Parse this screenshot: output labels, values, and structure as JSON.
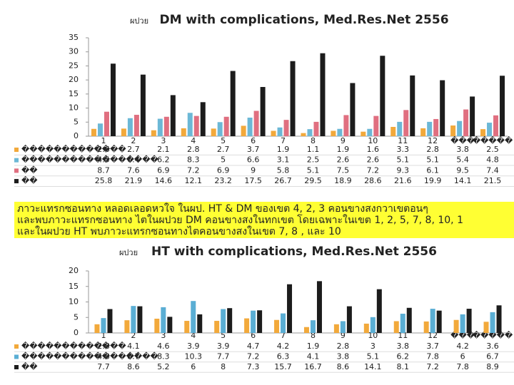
{
  "charts": [
    {
      "type": "bar",
      "prefix": "ผปวย",
      "title": "DM with complications, Med.Res.Net 2556",
      "categories": [
        "1",
        "2",
        "3",
        "4",
        "5",
        "6",
        "7",
        "8",
        "9",
        "10",
        "11",
        "12",
        "���",
        "�����"
      ],
      "ylim": [
        0,
        35
      ],
      "yticks": [
        0,
        5,
        10,
        15,
        20,
        25,
        30,
        35
      ],
      "series": [
        {
          "name": "�������������",
          "color": "#f2a93b",
          "values": [
            2.6,
            2.7,
            2.1,
            2.8,
            2.7,
            3.7,
            1.9,
            1.1,
            1.9,
            1.6,
            3.3,
            2.8,
            3.8,
            2.5
          ]
        },
        {
          "name": "�����������������",
          "color": "#6cb8d6",
          "values": [
            4.5,
            6.4,
            6.2,
            8.3,
            5.0,
            6.6,
            3.1,
            2.5,
            2.6,
            2.6,
            5.1,
            5.1,
            5.4,
            4.8
          ]
        },
        {
          "name": "��",
          "color": "#e06f80",
          "values": [
            8.7,
            7.6,
            6.9,
            7.2,
            6.9,
            9.0,
            5.8,
            5.1,
            7.5,
            7.2,
            9.3,
            6.1,
            9.5,
            7.4
          ]
        },
        {
          "name": "��",
          "color": "#1c1c1c",
          "values": [
            25.8,
            21.9,
            14.6,
            12.1,
            23.2,
            17.5,
            26.7,
            29.5,
            18.9,
            28.6,
            21.6,
            19.9,
            14.1,
            21.5
          ]
        }
      ]
    },
    {
      "type": "bar",
      "prefix": "ผปวย",
      "title": "HT with complications, Med.Res.Net 2556",
      "categories": [
        "1",
        "2",
        "3",
        "4",
        "5",
        "6",
        "7",
        "8",
        "9",
        "10",
        "11",
        "12",
        "���",
        "�����"
      ],
      "ylim": [
        0,
        20
      ],
      "yticks": [
        0,
        5,
        10,
        15,
        20
      ],
      "series": [
        {
          "name": "�������������",
          "color": "#f2a93b",
          "values": [
            2.8,
            4.1,
            4.6,
            3.9,
            3.9,
            4.7,
            4.2,
            1.9,
            2.8,
            3.0,
            3.8,
            3.7,
            4.2,
            3.6
          ]
        },
        {
          "name": "�����������������",
          "color": "#5aaed4",
          "values": [
            4.8,
            8.7,
            8.3,
            10.3,
            7.7,
            7.2,
            6.3,
            4.1,
            3.8,
            5.1,
            6.2,
            7.8,
            6.0,
            6.7
          ]
        },
        {
          "name": "��",
          "color": "#1c1c1c",
          "values": [
            7.7,
            8.6,
            5.2,
            6.0,
            8.0,
            7.3,
            15.7,
            16.7,
            8.6,
            14.1,
            8.1,
            7.2,
            7.8,
            8.9
          ]
        }
      ]
    }
  ],
  "annotation_lines": [
    "ภาวะแทรกซอนทาง หลอดเลอดหวใจ  ในผป. HT & DM ของเขต 4, 2, 3 คอนขางสงกวาเขตอนๆ",
    "และพบภาวะแทรกซอนทาง ไตในผปวย     DM คอนขางสงในทกเขต       โดยเฉพาะในเขต 1, 2, 5, 7, 8, 10, 1",
    "และในผปวย      HT พบภาวะแทรกซอนทางไตคอนขางสงในเขต          7, 8 , และ 10"
  ]
}
